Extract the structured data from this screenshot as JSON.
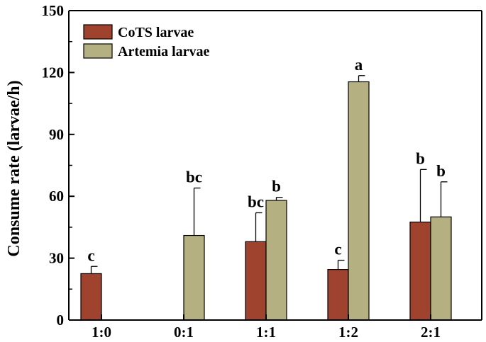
{
  "chart_data": {
    "type": "bar",
    "title": "",
    "xlabel": "",
    "ylabel": "Consume rate (larvae/h)",
    "ylim": [
      0,
      150
    ],
    "yticks": [
      0,
      30,
      60,
      90,
      120,
      150
    ],
    "grid": false,
    "legend_position": "top-left",
    "categories": [
      "1:0",
      "0:1",
      "1:1",
      "1:2",
      "2:1"
    ],
    "series": [
      {
        "name": "CoTS larvae",
        "color": "#A0432E",
        "values": [
          22.5,
          null,
          38,
          24.5,
          47.5
        ],
        "errors": [
          3.5,
          null,
          14,
          4.5,
          25.5
        ],
        "labels": [
          "c",
          "",
          "bc",
          "c",
          "b"
        ]
      },
      {
        "name": "Artemia larvae",
        "color": "#B4B082",
        "values": [
          null,
          41,
          58,
          115.5,
          50
        ],
        "errors": [
          null,
          23,
          1.5,
          3,
          17
        ],
        "labels": [
          "",
          "bc",
          "b",
          "a",
          "b"
        ]
      }
    ]
  }
}
